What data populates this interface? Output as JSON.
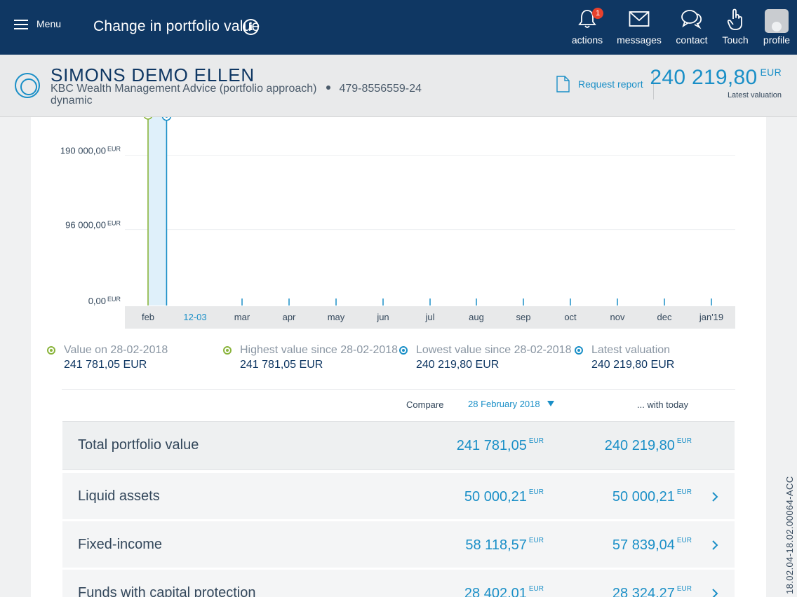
{
  "topbar": {
    "menu_label": "Menu",
    "page_title": "Change in portfolio value",
    "info_glyph": "i",
    "nav": [
      {
        "label": "actions",
        "icon": "bell-icon",
        "badge": "1"
      },
      {
        "label": "messages",
        "icon": "envelope-icon"
      },
      {
        "label": "contact",
        "icon": "chat-bubbles-icon"
      },
      {
        "label": "Touch",
        "icon": "hand-pointer-icon"
      },
      {
        "label": "profile",
        "icon": "avatar-icon"
      }
    ]
  },
  "client": {
    "name": "SIMONS DEMO ELLEN",
    "service": "KBC Wealth Management Advice (portfolio approach)",
    "account": "479-8556559-24",
    "profile": "dynamic",
    "request_report": "Request report",
    "latest_amount": "240 219,80",
    "latest_currency": "EUR",
    "latest_label": "Latest valuation"
  },
  "colors": {
    "nav_bg": "#0f3763",
    "accent_blue": "#1a8fc7",
    "accent_green": "#8ab43c",
    "badge_red": "#e8412c"
  },
  "chart_data": {
    "type": "area",
    "y_ticks": [
      {
        "label": "0,00",
        "unit": "EUR",
        "value": 0
      },
      {
        "label": "96 000,00",
        "unit": "EUR",
        "value": 96000
      },
      {
        "label": "190 000,00",
        "unit": "EUR",
        "value": 190000
      }
    ],
    "x_ticks": [
      "feb",
      "12-03",
      "mar",
      "apr",
      "may",
      "jun",
      "jul",
      "aug",
      "sep",
      "oct",
      "nov",
      "dec",
      "jan'19"
    ],
    "highlight_tick": "12-03",
    "ylim": [
      0,
      240000
    ],
    "series": [
      {
        "points": [
          {
            "x": "2018-02-28",
            "y": 241781.05
          },
          {
            "x": "2018-03-12",
            "y": 240219.8
          }
        ]
      }
    ],
    "markers": [
      {
        "x": "2018-02-28",
        "y": 241781.05,
        "color": "#8ab43c"
      },
      {
        "x": "2018-03-12",
        "y": 240219.8,
        "color": "#1a8fc7"
      }
    ]
  },
  "stats": [
    {
      "label": "Value on 28-02-2018",
      "value": "241 781,05 EUR",
      "icon": "target-green-icon"
    },
    {
      "label": "Highest value since 28-02-2018",
      "value": "241 781,05 EUR",
      "icon": "target-green-icon"
    },
    {
      "label": "Lowest value since 28-02-2018",
      "value": "240 219,80 EUR",
      "icon": "target-blue-icon"
    },
    {
      "label": "Latest valuation",
      "value": "240 219,80 EUR",
      "icon": "target-blue-icon"
    }
  ],
  "compare": {
    "label": "Compare",
    "selected_date": "28 February 2018",
    "with_today": "... with today"
  },
  "rows": [
    {
      "label": "Total portfolio value",
      "v1": "241 781,05",
      "v2": "240 219,80",
      "currency": "EUR"
    },
    {
      "label": "Liquid assets",
      "v1": "50 000,21",
      "v2": "50 000,21",
      "currency": "EUR"
    },
    {
      "label": "Fixed-income",
      "v1": "58 118,57",
      "v2": "57 839,04",
      "currency": "EUR"
    },
    {
      "label": "Funds with capital protection",
      "v1": "28 402,01",
      "v2": "28 324,27",
      "currency": "EUR"
    }
  ],
  "version": "18.02.04-18.02.00064-ACC"
}
